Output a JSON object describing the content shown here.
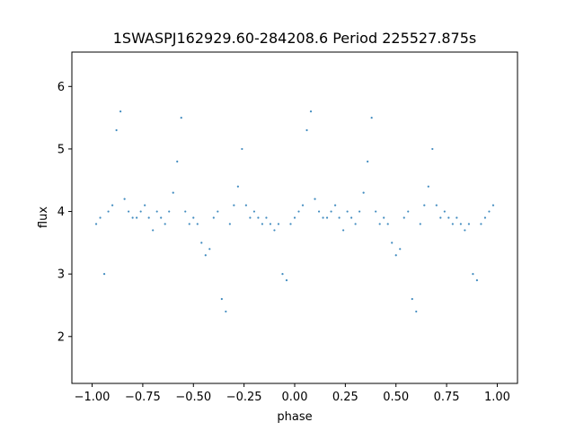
{
  "chart_data": {
    "type": "scatter",
    "title": "1SWASPJ162929.60-284208.6 Period 225527.875s",
    "xlabel": "phase",
    "ylabel": "flux",
    "xlim": [
      -1.1,
      1.1
    ],
    "ylim": [
      1.25,
      6.55
    ],
    "x_ticks": [
      -1.0,
      -0.75,
      -0.5,
      -0.25,
      0.0,
      0.25,
      0.5,
      0.75,
      1.0
    ],
    "x_tick_labels": [
      "−1.00",
      "−0.75",
      "−0.50",
      "−0.25",
      "0.00",
      "0.25",
      "0.50",
      "0.75",
      "1.00"
    ],
    "y_ticks": [
      2,
      3,
      4,
      5,
      6
    ],
    "y_tick_labels": [
      "2",
      "3",
      "4",
      "5",
      "6"
    ],
    "grid": false,
    "marker_color": "#1f77b4",
    "series": [
      {
        "x": [
          -0.98,
          -0.96,
          -0.94,
          -0.92,
          -0.9,
          -0.88,
          -0.86,
          -0.84,
          -0.82,
          -0.8,
          -0.78,
          -0.76,
          -0.74,
          -0.72,
          -0.7,
          -0.68,
          -0.66,
          -0.64,
          -0.62,
          -0.6,
          -0.58,
          -0.56,
          -0.54,
          -0.52,
          -0.5,
          -0.48,
          -0.46,
          -0.44,
          -0.42,
          -0.4,
          -0.38,
          -0.36,
          -0.34,
          -0.32,
          -0.3,
          -0.28,
          -0.26,
          -0.24,
          -0.22,
          -0.2,
          -0.18,
          -0.16,
          -0.14,
          -0.12,
          -0.1,
          -0.08,
          -0.06,
          -0.04,
          -0.02,
          0.0,
          0.02,
          0.04,
          0.06,
          0.08,
          0.1,
          0.12,
          0.14,
          0.16,
          0.18,
          0.2,
          0.22,
          0.24,
          0.26,
          0.28,
          0.3,
          0.32,
          0.34,
          0.36,
          0.38,
          0.4,
          0.42,
          0.44,
          0.46,
          0.48,
          0.5,
          0.52,
          0.54,
          0.56,
          0.58,
          0.6,
          0.62,
          0.64,
          0.66,
          0.68,
          0.7,
          0.72,
          0.74,
          0.76,
          0.78,
          0.8,
          0.82,
          0.84,
          0.86,
          0.88,
          0.9,
          0.92,
          0.94,
          0.96,
          0.98
        ],
        "y": [
          3.8,
          3.9,
          3.0,
          4.0,
          4.1,
          5.3,
          5.6,
          4.2,
          4.0,
          3.9,
          3.9,
          4.0,
          4.1,
          3.9,
          3.7,
          4.0,
          3.9,
          3.8,
          4.0,
          4.3,
          4.8,
          5.5,
          4.0,
          3.8,
          3.9,
          3.8,
          3.5,
          3.3,
          3.4,
          3.9,
          4.0,
          2.6,
          2.4,
          3.8,
          4.1,
          4.4,
          5.0,
          4.1,
          3.9,
          4.0,
          3.9,
          3.8,
          3.9,
          3.8,
          3.7,
          3.8,
          3.0,
          2.9,
          3.8,
          3.9,
          4.0,
          4.1,
          5.3,
          5.6,
          4.2,
          4.0,
          3.9,
          3.9,
          4.0,
          4.1,
          3.9,
          3.7,
          4.0,
          3.9,
          3.8,
          4.0,
          4.3,
          4.8,
          5.5,
          4.0,
          3.8,
          3.9,
          3.8,
          3.5,
          3.3,
          3.4,
          3.9,
          4.0,
          2.6,
          2.4,
          3.8,
          4.1,
          4.4,
          5.0,
          4.1,
          3.9,
          4.0,
          3.9,
          3.8,
          3.9,
          3.8,
          3.7,
          3.8,
          3.0,
          2.9,
          3.8,
          3.9,
          4.0,
          4.1
        ]
      }
    ]
  }
}
